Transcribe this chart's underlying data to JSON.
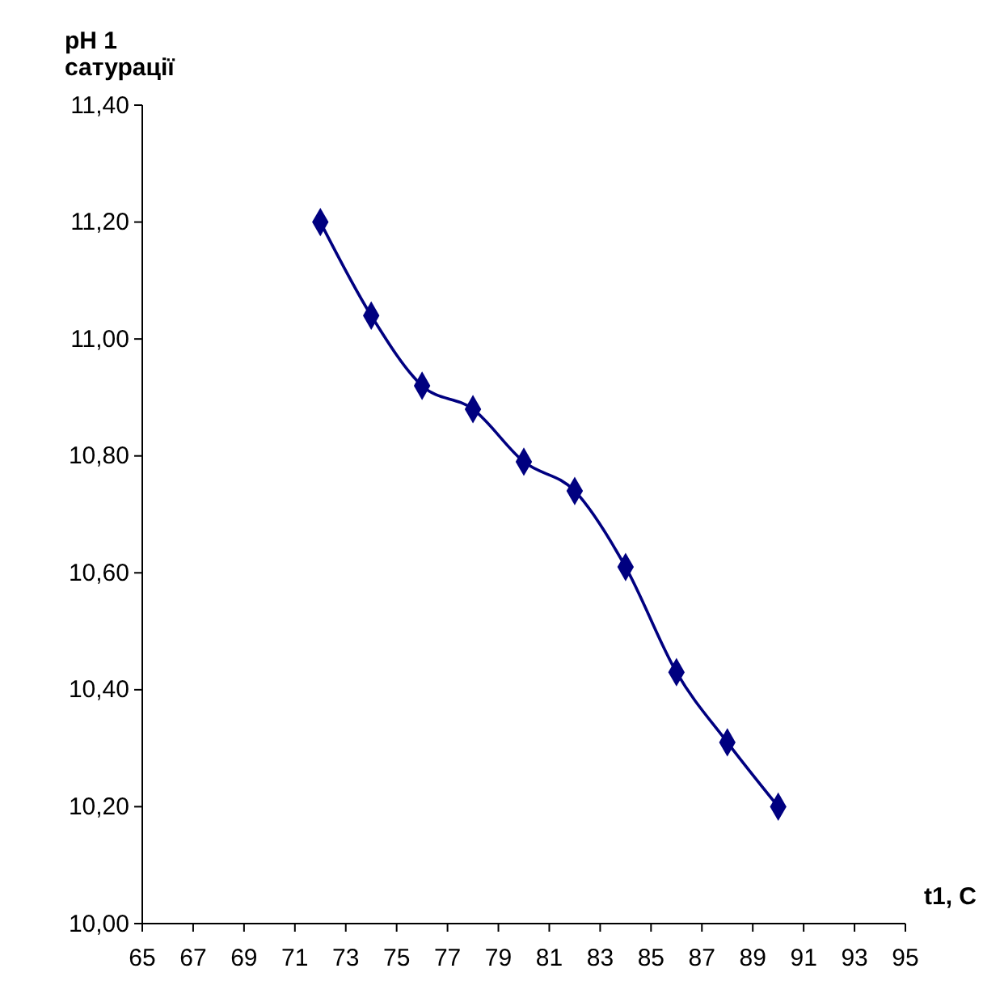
{
  "chart_data": {
    "type": "line",
    "ylabel": "pH 1 сатурації",
    "xlabel": "t1, C",
    "x": [
      72,
      74,
      76,
      78,
      80,
      82,
      84,
      86,
      88,
      90
    ],
    "series": [
      {
        "color": "#000080",
        "values": [
          11.2,
          11.04,
          10.92,
          10.88,
          10.79,
          10.74,
          10.61,
          10.43,
          10.31,
          10.2
        ]
      }
    ],
    "xlim": [
      65,
      95
    ],
    "xticks": [
      65,
      67,
      69,
      71,
      73,
      75,
      77,
      79,
      81,
      83,
      85,
      87,
      89,
      91,
      93,
      95
    ],
    "ylim": [
      10,
      11.4
    ],
    "yticks": [
      {
        "value": 10,
        "label": "10,00"
      },
      {
        "value": 10.2,
        "label": "10,20"
      },
      {
        "value": 10.4,
        "label": "10,40"
      },
      {
        "value": 10.6,
        "label": "10,60"
      },
      {
        "value": 10.8,
        "label": "10,80"
      },
      {
        "value": 11,
        "label": "11,00"
      },
      {
        "value": 11.2,
        "label": "11,20"
      },
      {
        "value": 11.4,
        "label": "11,40"
      }
    ],
    "grid": false,
    "marker": "diamond",
    "line_style": "solid"
  }
}
